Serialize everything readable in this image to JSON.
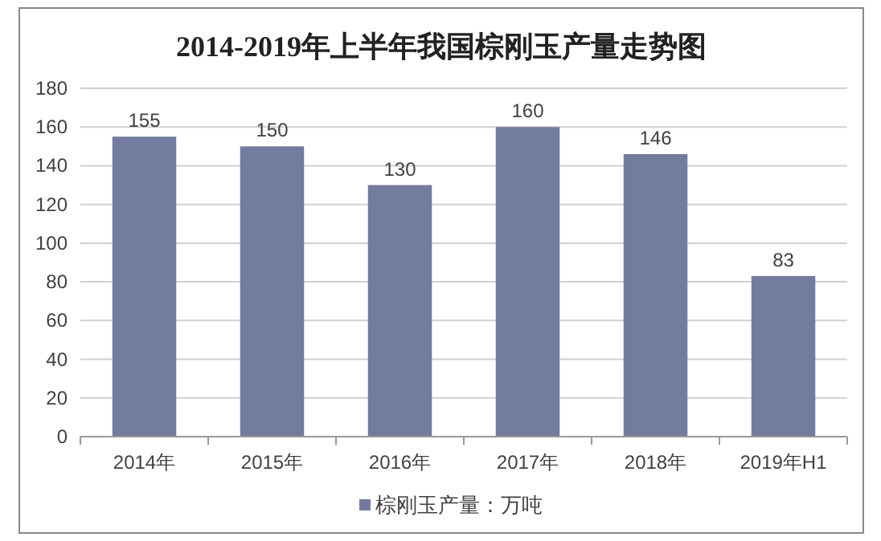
{
  "chart_data": {
    "type": "bar",
    "title": "2014-2019年上半年我国棕刚玉产量走势图",
    "categories": [
      "2014年",
      "2015年",
      "2016年",
      "2017年",
      "2018年",
      "2019年H1"
    ],
    "series": [
      {
        "name": "棕刚玉产量：万吨",
        "color": "#737b9f",
        "values": [
          155,
          150,
          130,
          160,
          146,
          83
        ]
      }
    ],
    "ylim": [
      0,
      180
    ],
    "yticks": [
      0,
      20,
      40,
      60,
      80,
      100,
      120,
      140,
      160,
      180
    ],
    "grid": "y",
    "data_labels": true,
    "legend": "bottom"
  }
}
